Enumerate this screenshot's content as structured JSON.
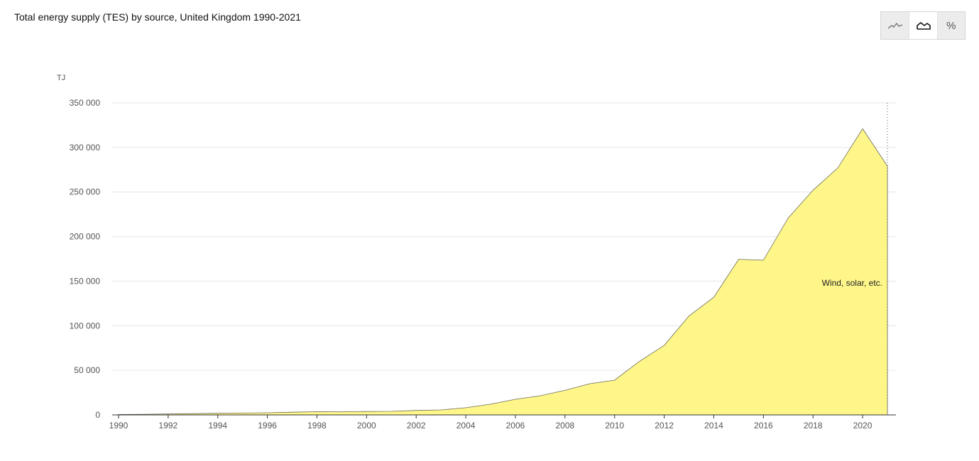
{
  "title": "Total energy supply (TES) by source, United Kingdom 1990-2021",
  "toolbar": {
    "buttons": [
      {
        "name": "line-chart-toggle",
        "icon": "line-chart-icon",
        "active": false
      },
      {
        "name": "area-chart-toggle",
        "icon": "area-chart-icon",
        "active": true
      },
      {
        "name": "percent-toggle",
        "icon": "percent-icon",
        "label": "%",
        "active": false
      }
    ]
  },
  "colors": {
    "area_fill": "#fff68a",
    "area_stroke": "#6b6b5a",
    "grid": "#e6e6e6",
    "axis": "#333333"
  },
  "chart_data": {
    "type": "area",
    "title": "Total energy supply (TES) by source, United Kingdom 1990-2021",
    "unit_label": "TJ",
    "xlabel": "",
    "ylabel": "",
    "ylim": [
      0,
      350000
    ],
    "xlim": [
      1990,
      2021
    ],
    "y_ticks": [
      0,
      50000,
      100000,
      150000,
      200000,
      250000,
      300000,
      350000
    ],
    "y_tick_labels": [
      "0",
      "50 000",
      "100 000",
      "150 000",
      "200 000",
      "250 000",
      "300 000",
      "350 000"
    ],
    "x_ticks": [
      "1990",
      "1992",
      "1994",
      "1996",
      "1998",
      "2000",
      "2002",
      "2004",
      "2006",
      "2008",
      "2010",
      "2012",
      "2014",
      "2016",
      "2018",
      "2020"
    ],
    "x": [
      1990,
      1991,
      1992,
      1993,
      1994,
      1995,
      1996,
      1997,
      1998,
      1999,
      2000,
      2001,
      2002,
      2003,
      2004,
      2005,
      2006,
      2007,
      2008,
      2009,
      2010,
      2011,
      2012,
      2013,
      2014,
      2015,
      2016,
      2017,
      2018,
      2019,
      2020,
      2021
    ],
    "grid": true,
    "series": [
      {
        "name": "Wind, solar, etc.",
        "values": [
          500,
          700,
          1000,
          1400,
          1800,
          2100,
          2400,
          3000,
          3600,
          3500,
          3800,
          4000,
          5000,
          5600,
          8000,
          12000,
          17500,
          21500,
          27500,
          35000,
          39000,
          60000,
          78000,
          111000,
          132000,
          174500,
          173500,
          221000,
          252000,
          277000,
          321000,
          279000
        ]
      }
    ]
  }
}
